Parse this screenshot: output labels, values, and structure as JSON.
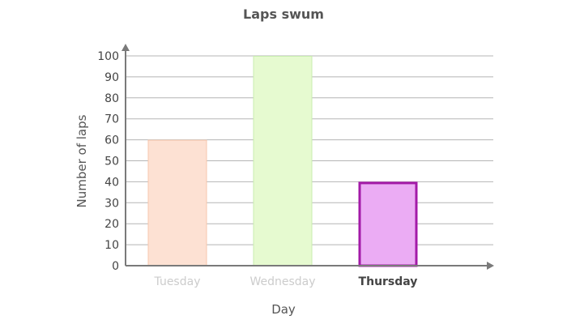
{
  "chart_data": {
    "type": "bar",
    "title": "Laps swum",
    "xlabel": "Day",
    "ylabel": "Number of laps",
    "categories": [
      "Tuesday",
      "Wednesday",
      "Thursday"
    ],
    "values": [
      60,
      100,
      40
    ],
    "ylim": [
      0,
      100
    ],
    "yticks": [
      "0",
      "10",
      "20",
      "30",
      "40",
      "50",
      "60",
      "70",
      "80",
      "90",
      "100"
    ],
    "grid": true,
    "highlighted_category": "Thursday",
    "colors": {
      "bar_fills": [
        "#fde1d3",
        "#e6fad0",
        "#ebacf4"
      ],
      "bar_strokes": [
        "#f7c7ad",
        "#c9edb0",
        "#a31aa8"
      ],
      "category_label_colors": [
        "#cccccc",
        "#cccccc",
        "#444444"
      ],
      "grid": "#b5b5b5",
      "axis": "#7a7a7a"
    }
  }
}
